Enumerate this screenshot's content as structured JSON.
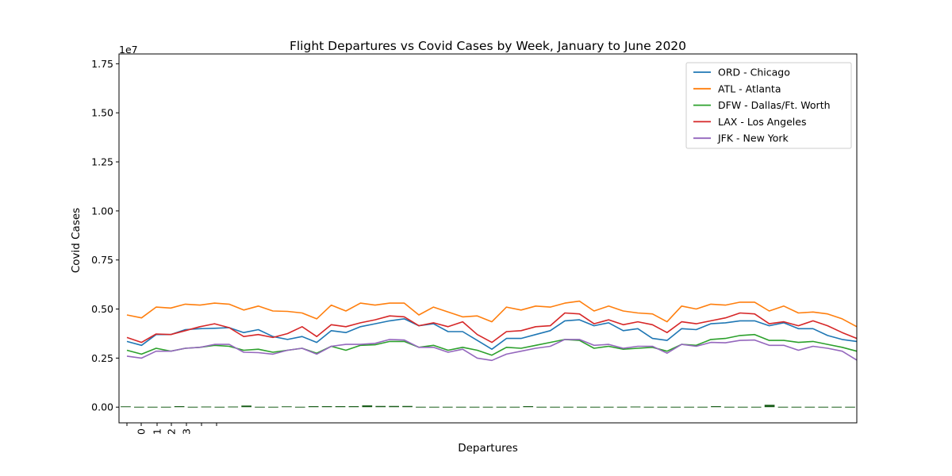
{
  "chart_data": {
    "type": "line",
    "title": "Flight Departures vs Covid Cases by Week, January to June 2020",
    "xlabel": "Departures",
    "ylabel": "Covid Cases",
    "y_scale_label": "1e7",
    "ylim": [
      -0.08,
      1.8
    ],
    "y_ticks": [
      0.0,
      0.25,
      0.5,
      0.75,
      1.0,
      1.25,
      1.5,
      1.75
    ],
    "y_tick_labels": [
      "0.00",
      "0.25",
      "0.50",
      "0.75",
      "1.00",
      "1.25",
      "1.50",
      "1.75"
    ],
    "x_tick_labels": [
      "0",
      "1",
      "2",
      "3"
    ],
    "legend_position": "top-right",
    "grid": false,
    "series": [
      {
        "name": "ORD - Chicago",
        "color": "#1f77b4",
        "values": [
          0.335,
          0.315,
          0.37,
          0.37,
          0.395,
          0.4,
          0.402,
          0.405,
          0.38,
          0.395,
          0.36,
          0.345,
          0.36,
          0.33,
          0.39,
          0.38,
          0.41,
          0.425,
          0.44,
          0.45,
          0.415,
          0.425,
          0.385,
          0.385,
          0.34,
          0.295,
          0.35,
          0.35,
          0.37,
          0.39,
          0.44,
          0.445,
          0.415,
          0.43,
          0.39,
          0.4,
          0.35,
          0.34,
          0.4,
          0.395,
          0.425,
          0.43,
          0.44,
          0.44,
          0.415,
          0.43,
          0.4,
          0.4,
          0.365,
          0.345,
          0.335
        ]
      },
      {
        "name": "ATL - Atlanta",
        "color": "#ff7f0e",
        "values": [
          0.47,
          0.455,
          0.51,
          0.505,
          0.525,
          0.52,
          0.53,
          0.525,
          0.495,
          0.515,
          0.49,
          0.488,
          0.48,
          0.45,
          0.52,
          0.49,
          0.53,
          0.52,
          0.53,
          0.53,
          0.47,
          0.51,
          0.485,
          0.46,
          0.465,
          0.435,
          0.51,
          0.495,
          0.515,
          0.51,
          0.53,
          0.54,
          0.49,
          0.515,
          0.49,
          0.48,
          0.475,
          0.435,
          0.515,
          0.5,
          0.525,
          0.52,
          0.535,
          0.535,
          0.49,
          0.515,
          0.48,
          0.485,
          0.475,
          0.45,
          0.41
        ]
      },
      {
        "name": "DFW - Dallas/Ft. Worth",
        "color": "#2ca02c",
        "values": [
          0.29,
          0.27,
          0.3,
          0.285,
          0.3,
          0.305,
          0.315,
          0.31,
          0.29,
          0.295,
          0.28,
          0.29,
          0.3,
          0.275,
          0.31,
          0.29,
          0.315,
          0.318,
          0.335,
          0.335,
          0.305,
          0.315,
          0.29,
          0.305,
          0.29,
          0.265,
          0.305,
          0.3,
          0.315,
          0.33,
          0.345,
          0.34,
          0.3,
          0.31,
          0.295,
          0.3,
          0.305,
          0.285,
          0.32,
          0.315,
          0.345,
          0.35,
          0.365,
          0.37,
          0.34,
          0.34,
          0.33,
          0.335,
          0.32,
          0.305,
          0.285
        ]
      },
      {
        "name": "LAX - Los Angeles",
        "color": "#d62728",
        "values": [
          0.355,
          0.33,
          0.373,
          0.37,
          0.39,
          0.41,
          0.425,
          0.405,
          0.36,
          0.37,
          0.355,
          0.375,
          0.41,
          0.36,
          0.42,
          0.41,
          0.43,
          0.445,
          0.465,
          0.46,
          0.415,
          0.43,
          0.41,
          0.435,
          0.37,
          0.33,
          0.385,
          0.39,
          0.41,
          0.415,
          0.48,
          0.475,
          0.425,
          0.445,
          0.42,
          0.435,
          0.42,
          0.38,
          0.435,
          0.425,
          0.44,
          0.455,
          0.48,
          0.475,
          0.425,
          0.435,
          0.415,
          0.44,
          0.415,
          0.38,
          0.35
        ]
      },
      {
        "name": "JFK - New York",
        "color": "#9467bd",
        "values": [
          0.26,
          0.25,
          0.285,
          0.285,
          0.3,
          0.305,
          0.32,
          0.32,
          0.28,
          0.278,
          0.27,
          0.29,
          0.3,
          0.27,
          0.31,
          0.32,
          0.32,
          0.325,
          0.345,
          0.342,
          0.305,
          0.305,
          0.28,
          0.295,
          0.25,
          0.238,
          0.27,
          0.285,
          0.3,
          0.31,
          0.345,
          0.345,
          0.315,
          0.32,
          0.3,
          0.31,
          0.31,
          0.275,
          0.32,
          0.31,
          0.33,
          0.328,
          0.34,
          0.342,
          0.315,
          0.315,
          0.29,
          0.31,
          0.3,
          0.285,
          0.24
        ]
      }
    ],
    "bars": {
      "label_color": "dark-green",
      "color": "#1a5e1a",
      "values": [
        0.004,
        0.002,
        0.002,
        0.002,
        0.005,
        0.002,
        0.003,
        0.002,
        0.003,
        0.008,
        0.002,
        0.002,
        0.004,
        0.002,
        0.005,
        0.005,
        0.005,
        0.005,
        0.009,
        0.006,
        0.006,
        0.006,
        0.002,
        0.002,
        0.002,
        0.002,
        0.002,
        0.002,
        0.002,
        0.002,
        0.005,
        0.002,
        0.002,
        0.002,
        0.002,
        0.002,
        0.002,
        0.002,
        0.003,
        0.002,
        0.002,
        0.002,
        0.002,
        0.002,
        0.005,
        0.002,
        0.002,
        0.002,
        0.012,
        0.002,
        0.002,
        0.002,
        0.002,
        0.002,
        0.002
      ]
    }
  }
}
